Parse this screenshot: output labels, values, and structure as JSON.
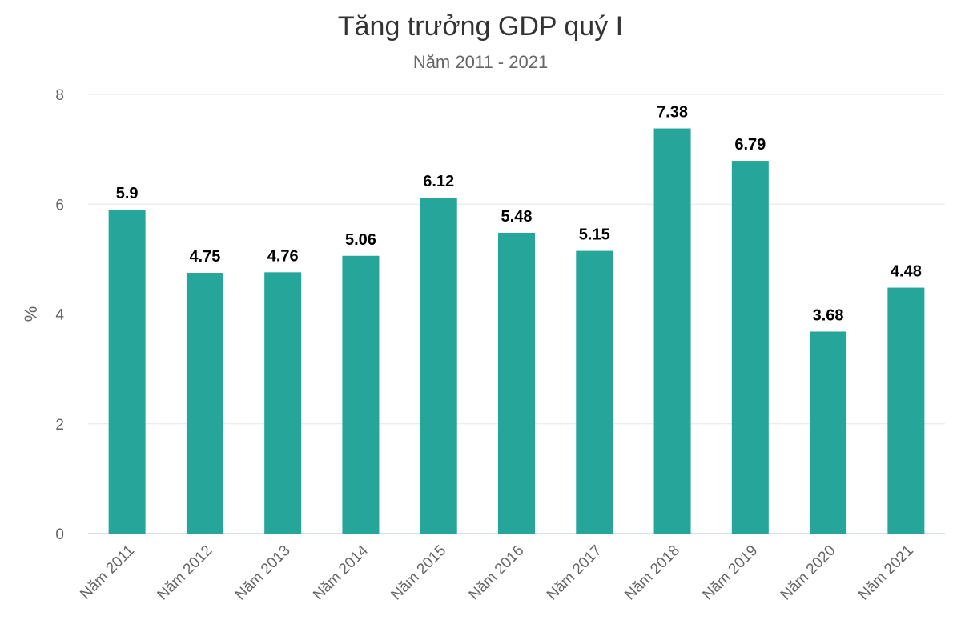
{
  "chart_data": {
    "type": "bar",
    "title": "Tăng trưởng GDP quý I",
    "subtitle": "Năm 2011 - 2021",
    "ylabel": "%",
    "xlabel": "",
    "categories": [
      "Năm 2011",
      "Năm 2012",
      "Năm 2013",
      "Năm 2014",
      "Năm 2015",
      "Năm 2016",
      "Năm 2017",
      "Năm 2018",
      "Năm 2019",
      "Năm 2020",
      "Năm 2021"
    ],
    "values": [
      5.9,
      4.75,
      4.76,
      5.06,
      6.12,
      5.48,
      5.15,
      7.38,
      6.79,
      3.68,
      4.48
    ],
    "data_labels": [
      "5.9",
      "4.75",
      "4.76",
      "5.06",
      "6.12",
      "5.48",
      "5.15",
      "7.38",
      "6.79",
      "3.68",
      "4.48"
    ],
    "ylim": [
      0,
      8
    ],
    "yticks": [
      0,
      2,
      4,
      6,
      8
    ],
    "grid": true,
    "legend": "none",
    "bar_color": "#26a69a",
    "grid_color": "#e6e6e6",
    "axis_color": "#ccd6eb"
  }
}
